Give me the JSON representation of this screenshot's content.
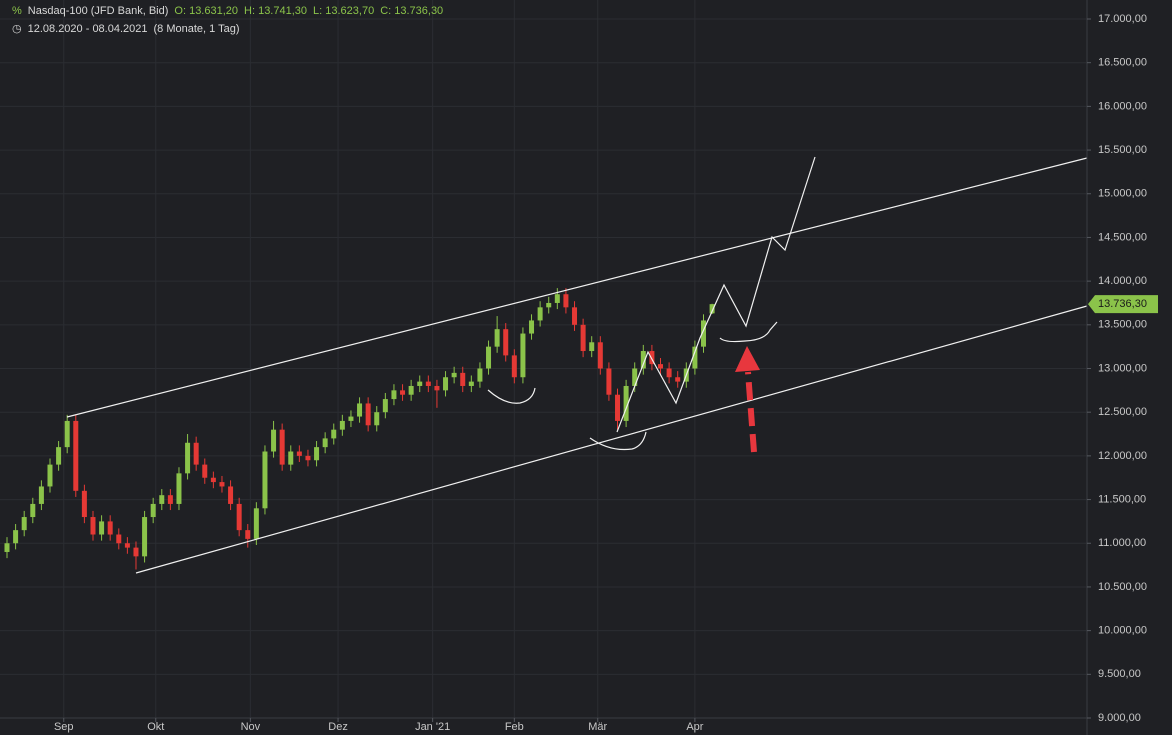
{
  "chart_data": {
    "type": "candlestick",
    "title": "Nasdaq-100 (JFD Bank, Bid)",
    "ohlc_text": [
      "O: 13.631,20",
      "H: 13.741,30",
      "L: 13.623,70",
      "C: 13.736,30"
    ],
    "subtitle": "12.08.2020 - 08.04.2021",
    "period": "(8 Monate, 1 Tag)",
    "last_value_label": "13.736,30",
    "up_color": "#8bc34a",
    "down_color": "#e53935",
    "grid": true,
    "xlim": [
      0,
      125.6
    ],
    "xticks": [
      {
        "value": 6.6,
        "label": "Sep"
      },
      {
        "value": 17.3,
        "label": "Okt"
      },
      {
        "value": 28.3,
        "label": "Nov"
      },
      {
        "value": 38.5,
        "label": "Dez"
      },
      {
        "value": 49.5,
        "label": "Jan '21"
      },
      {
        "value": 59,
        "label": "Feb"
      },
      {
        "value": 68.7,
        "label": "Mär"
      },
      {
        "value": 80,
        "label": "Apr"
      }
    ],
    "ylim": [
      9000,
      17000
    ],
    "yticks": [
      {
        "value": 9000,
        "label": "9.000,00"
      },
      {
        "value": 9500,
        "label": "9.500,00"
      },
      {
        "value": 10000,
        "label": "10.000,00"
      },
      {
        "value": 10500,
        "label": "10.500,00"
      },
      {
        "value": 11000,
        "label": "11.000,00"
      },
      {
        "value": 11500,
        "label": "11.500,00"
      },
      {
        "value": 12000,
        "label": "12.000,00"
      },
      {
        "value": 12500,
        "label": "12.500,00"
      },
      {
        "value": 13000,
        "label": "13.000,00"
      },
      {
        "value": 13500,
        "label": "13.500,00"
      },
      {
        "value": 14000,
        "label": "14.000,00"
      },
      {
        "value": 14500,
        "label": "14.500,00"
      },
      {
        "value": 15000,
        "label": "15.000,00"
      },
      {
        "value": 15500,
        "label": "15.500,00"
      },
      {
        "value": 16000,
        "label": "16.000,00"
      },
      {
        "value": 16500,
        "label": "16.500,00"
      },
      {
        "value": 17000,
        "label": "17.000,00"
      }
    ],
    "open": [
      10900,
      11000,
      11150,
      11300,
      11450,
      11650,
      11900,
      12100,
      12400,
      11600,
      11300,
      11100,
      11250,
      11100,
      11000,
      10950,
      10850,
      11300,
      11450,
      11550,
      11450,
      11800,
      12150,
      11900,
      11750,
      11700,
      11650,
      11450,
      11150,
      11050,
      11400,
      12050,
      12300,
      11900,
      12050,
      12000,
      11950,
      12100,
      12200,
      12300,
      12400,
      12450,
      12600,
      12350,
      12500,
      12650,
      12750,
      12700,
      12800,
      12850,
      12800,
      12750,
      12900,
      12950,
      12800,
      12850,
      13000,
      13250,
      13450,
      13150,
      12900,
      13400,
      13550,
      13700,
      13750,
      13850,
      13700,
      13500,
      13200,
      13300,
      13000,
      12700,
      12400,
      12800,
      13000,
      13200,
      13050,
      13000,
      12900,
      12850,
      13000,
      13250,
      13631.2
    ],
    "high": [
      11070,
      11220,
      11370,
      11520,
      11720,
      11970,
      12170,
      12470,
      12470,
      11670,
      11370,
      11320,
      11320,
      11170,
      11070,
      11020,
      11370,
      11520,
      11620,
      11620,
      11870,
      12250,
      12220,
      11970,
      11820,
      11770,
      11720,
      11520,
      11220,
      11470,
      12120,
      12400,
      12370,
      12120,
      12120,
      12070,
      12170,
      12270,
      12370,
      12470,
      12520,
      12670,
      12670,
      12570,
      12720,
      12820,
      12820,
      12870,
      12920,
      12920,
      12870,
      12970,
      13020,
      13020,
      12920,
      13070,
      13320,
      13600,
      13520,
      13220,
      13470,
      13620,
      13770,
      13820,
      13920,
      13920,
      13770,
      13570,
      13370,
      13370,
      13070,
      12770,
      12870,
      13070,
      13270,
      13270,
      13120,
      13070,
      12970,
      13070,
      13320,
      13620,
      13741.3
    ],
    "low": [
      10830,
      10930,
      11080,
      11230,
      11380,
      11580,
      11830,
      12030,
      11530,
      11230,
      11030,
      11030,
      11030,
      10930,
      10880,
      10700,
      10780,
      11230,
      11380,
      11380,
      11380,
      11730,
      11830,
      11680,
      11630,
      11580,
      11380,
      11080,
      10950,
      10980,
      11330,
      11980,
      11830,
      11830,
      11930,
      11880,
      11880,
      12030,
      12130,
      12230,
      12330,
      12380,
      12280,
      12280,
      12430,
      12580,
      12630,
      12630,
      12730,
      12730,
      12550,
      12680,
      12830,
      12730,
      12730,
      12780,
      12930,
      13180,
      13080,
      12830,
      12830,
      13330,
      13480,
      13630,
      13680,
      13630,
      13430,
      13130,
      13130,
      12930,
      12630,
      12300,
      12330,
      12730,
      12930,
      12980,
      12930,
      12830,
      12780,
      12780,
      12930,
      13180,
      13623.7
    ],
    "close": [
      11000,
      11150,
      11300,
      11450,
      11650,
      11900,
      12100,
      12400,
      11600,
      11300,
      11100,
      11250,
      11100,
      11000,
      10950,
      10850,
      11300,
      11450,
      11550,
      11450,
      11800,
      12150,
      11900,
      11750,
      11700,
      11650,
      11450,
      11150,
      11050,
      11400,
      12050,
      12300,
      11900,
      12050,
      12000,
      11950,
      12100,
      12200,
      12300,
      12400,
      12450,
      12600,
      12350,
      12500,
      12650,
      12750,
      12700,
      12800,
      12850,
      12800,
      12750,
      12900,
      12950,
      12800,
      12850,
      13000,
      13250,
      13450,
      13150,
      12900,
      13400,
      13550,
      13700,
      13750,
      13850,
      13700,
      13500,
      13200,
      13300,
      13000,
      12700,
      12400,
      12800,
      13000,
      13200,
      13050,
      13000,
      12900,
      12850,
      13000,
      13250,
      13550,
      13736.3
    ]
  }
}
